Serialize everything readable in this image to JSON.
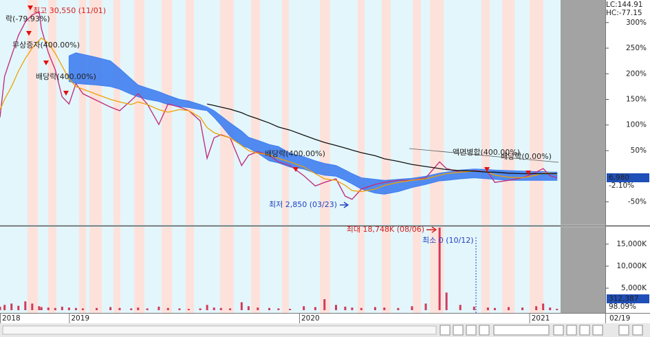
{
  "chart_data": {
    "type": "line",
    "x": [
      2018.7,
      2018.72,
      2018.75,
      2018.78,
      2018.81,
      2018.84,
      2018.87,
      2018.88,
      2018.91,
      2018.94,
      2018.97,
      2019.0,
      2019.03,
      2019.06,
      2019.12,
      2019.18,
      2019.22,
      2019.27,
      2019.3,
      2019.34,
      2019.39,
      2019.43,
      2019.48,
      2019.52,
      2019.57,
      2019.6,
      2019.63,
      2019.66,
      2019.7,
      2019.75,
      2019.78,
      2019.82,
      2019.87,
      2019.91,
      2019.96,
      2020.02,
      2020.07,
      2020.11,
      2020.16,
      2020.2,
      2020.23,
      2020.27,
      2020.33,
      2020.37,
      2020.43,
      2020.49,
      2020.55,
      2020.61,
      2020.64,
      2020.7,
      2020.76,
      2020.82,
      2020.85,
      2020.91,
      2020.97,
      2021.03,
      2021.06,
      2021.09,
      2021.12
    ],
    "xlim": [
      2018.7,
      2021.33
    ],
    "xticks": [
      {
        "value": 2018.7,
        "label": "2018"
      },
      2019,
      2020,
      2021
    ],
    "ylim": [
      -95,
      344
    ],
    "yticks": [
      {
        "value": 300,
        "label": "300%"
      },
      {
        "value": 250,
        "label": "250%"
      },
      {
        "value": 200,
        "label": "200%"
      },
      {
        "value": 150,
        "label": "150%"
      },
      {
        "value": 100,
        "label": "100%"
      },
      {
        "value": 50,
        "label": "50%"
      },
      {
        "value": -50,
        "label": "-50%"
      }
    ],
    "series": [
      {
        "color": "#c0307e",
        "values": [
          115,
          195,
          235,
          275,
          301,
          315,
          321,
          288,
          241,
          208,
          155,
          141,
          181,
          161,
          148,
          135,
          128,
          148,
          161,
          141,
          101,
          141,
          135,
          128,
          108,
          35,
          75,
          81,
          75,
          21,
          41,
          48,
          41,
          28,
          21,
          1,
          -19,
          -12,
          -5,
          -39,
          -45,
          -25,
          -16,
          -12,
          -8,
          -8,
          -3,
          28,
          15,
          8,
          11,
          8,
          -12,
          -8,
          -3,
          8,
          15,
          1,
          -3
        ]
      },
      {
        "color": "#eea000",
        "values": [
          130,
          150,
          175,
          205,
          230,
          250,
          265,
          270,
          260,
          240,
          215,
          190,
          175,
          170,
          160,
          150,
          145,
          140,
          145,
          140,
          130,
          125,
          130,
          128,
          115,
          95,
          85,
          80,
          75,
          60,
          50,
          45,
          42,
          35,
          28,
          18,
          5,
          -5,
          -8,
          -18,
          -28,
          -30,
          -25,
          -18,
          -12,
          -8,
          -5,
          2,
          5,
          8,
          10,
          8,
          2,
          -2,
          -3,
          2,
          6,
          6,
          4
        ]
      },
      {
        "color": "#111111",
        "values": [
          null,
          null,
          null,
          null,
          null,
          null,
          null,
          null,
          null,
          null,
          null,
          null,
          null,
          null,
          null,
          null,
          null,
          null,
          null,
          null,
          null,
          null,
          null,
          null,
          null,
          141,
          138,
          135,
          131,
          124,
          118,
          112,
          104,
          96,
          90,
          80,
          72,
          66,
          60,
          55,
          51,
          46,
          40,
          34,
          29,
          23,
          19,
          15,
          13,
          11,
          10,
          8,
          8,
          6,
          5,
          5,
          5,
          5,
          5
        ]
      }
    ],
    "cloud": {
      "color": "#3f7ff0",
      "upper": [
        null,
        null,
        null,
        null,
        null,
        null,
        null,
        null,
        null,
        null,
        null,
        235,
        241,
        238,
        232,
        225,
        210,
        190,
        178,
        172,
        165,
        158,
        150,
        147,
        140,
        135,
        128,
        118,
        104,
        88,
        76,
        70,
        62,
        58,
        45,
        38,
        30,
        25,
        21,
        12,
        5,
        -3,
        -6,
        -8,
        -6,
        -4,
        0,
        6,
        8,
        12,
        14,
        13,
        12,
        11,
        10,
        9,
        9,
        8,
        8
      ],
      "lower": [
        null,
        null,
        null,
        null,
        null,
        null,
        null,
        null,
        null,
        null,
        null,
        185,
        181,
        180,
        178,
        175,
        170,
        160,
        155,
        150,
        146,
        140,
        136,
        134,
        130,
        128,
        115,
        100,
        78,
        60,
        55,
        45,
        30,
        26,
        18,
        14,
        6,
        2,
        0,
        -8,
        -15,
        -25,
        -33,
        -35,
        -30,
        -22,
        -16,
        -9,
        -8,
        -5,
        -3,
        -5,
        -6,
        -8,
        -8,
        -8,
        -8,
        -8,
        -8
      ]
    },
    "volume": {
      "color": "#d23a5a",
      "values": [
        800,
        1200,
        1500,
        1000,
        2000,
        1500,
        900,
        700,
        600,
        500,
        800,
        600,
        500,
        400,
        500,
        700,
        500,
        400,
        600,
        400,
        800,
        500,
        400,
        300,
        400,
        1200,
        600,
        500,
        400,
        1800,
        900,
        600,
        500,
        400,
        300,
        900,
        700,
        2500,
        1200,
        800,
        600,
        500,
        700,
        600,
        500,
        900,
        1500,
        18748,
        4000,
        1200,
        800,
        600,
        500,
        700,
        600,
        900,
        1500,
        600,
        312
      ],
      "ylim": [
        0,
        18900
      ],
      "yticks": [
        {
          "value": 15000,
          "label": "15,000K"
        },
        {
          "value": 10000,
          "label": "10,000K"
        },
        {
          "value": 5000,
          "label": "5,000K"
        }
      ]
    },
    "annotations": [
      "최고 30,550 (11/01)",
      "락(-79.93%)",
      "무상증자(400.00%)",
      "배당락(400.00%)",
      "배당락(400.00%)",
      "액면병합(400.00%)",
      "배당락(0.00%)",
      "최저 2,850 (03/23)",
      "최대 18,748K (08/06)",
      "최소 0 (10/12)"
    ],
    "lc": "LC:144.91",
    "hc": "HC:-77.15",
    "last_price": "6,980",
    "last_change": "-2.10%",
    "last_volume": "312,387",
    "volume_ratio": "98.09%",
    "date_label": "02/19"
  }
}
